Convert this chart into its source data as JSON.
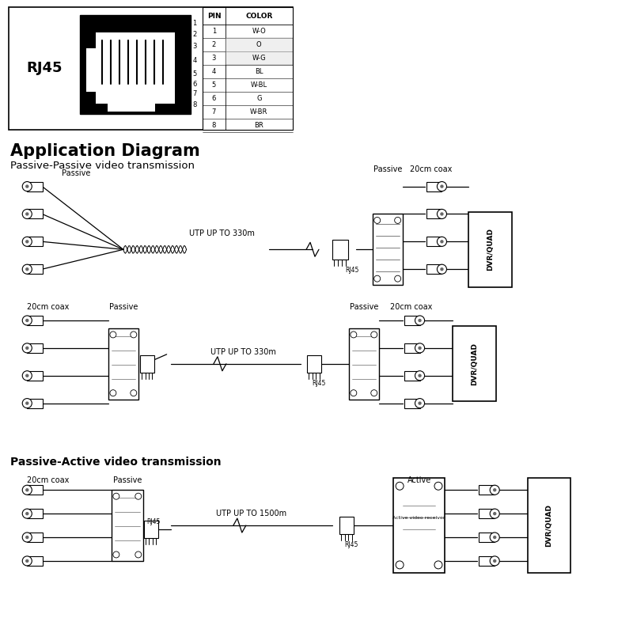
{
  "bg_color": "#ffffff",
  "title": "Application Diagram",
  "subtitle1": "Passive-Passive video transmission",
  "subtitle2": "Passive-Active video transmission",
  "pin_rows": [
    [
      "1",
      "W-O"
    ],
    [
      "2",
      "O"
    ],
    [
      "3",
      "W-G"
    ],
    [
      "4",
      "BL"
    ],
    [
      "5",
      "W-BL"
    ],
    [
      "6",
      "G"
    ],
    [
      "7",
      "W-BR"
    ],
    [
      "8",
      "BR"
    ]
  ],
  "utp_label1": "UTP UP TO 330m",
  "utp_label2": "UTP UP TO 330m",
  "utp_label3": "UTP UP TO 1500m",
  "rj45_tag": "RJ45",
  "passive_label": "Passive",
  "active_label": "Active",
  "coax_label": "20cm coax",
  "dvr_label": "DVR/QUAD",
  "black": "#000000",
  "gray": "#666666",
  "lgray": "#cccccc"
}
